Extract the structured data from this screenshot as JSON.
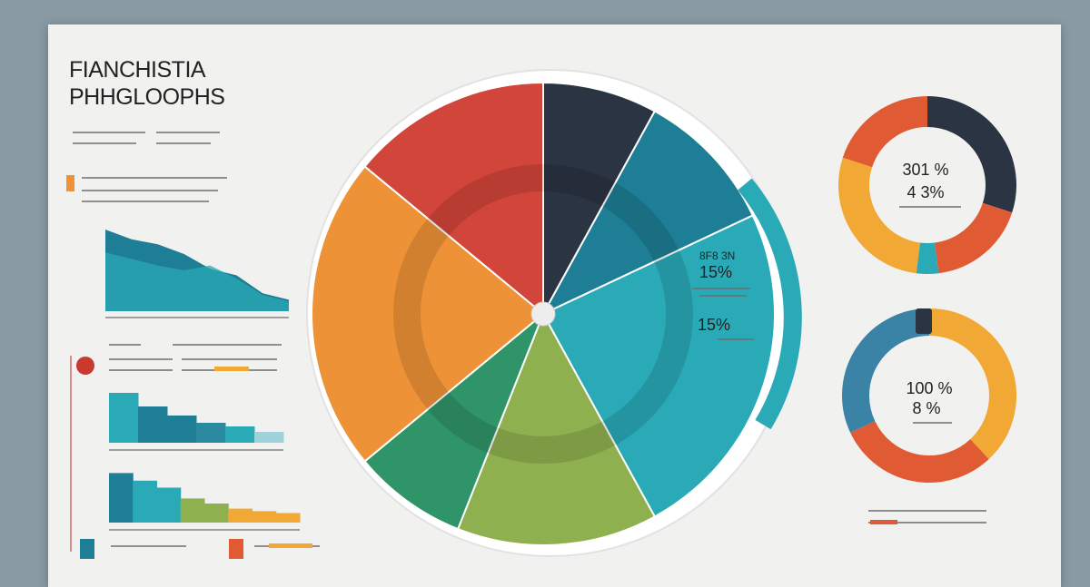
{
  "title_lines": [
    "FIANCHISTIA",
    "PHHGLOOPHS"
  ],
  "colors": {
    "red": "#d2453a",
    "orange": "#ee9237",
    "navy": "#2b3442",
    "green": "#2f9467",
    "lime": "#8fb04e",
    "teal": "#2aaab7",
    "blue": "#1e7e95",
    "yellow": "#f2a835",
    "donut_red": "#e05a34",
    "donut_blue": "#3a82a6"
  },
  "chart_data": [
    {
      "type": "area",
      "description_free": true,
      "series": [
        {
          "values": [
            100,
            88,
            82,
            70,
            52,
            44,
            22,
            14
          ]
        },
        {
          "values": [
            72,
            64,
            56,
            50,
            56,
            40,
            20,
            12
          ]
        }
      ]
    },
    {
      "type": "bar",
      "values": [
        55,
        40,
        30,
        22,
        18,
        12
      ]
    },
    {
      "type": "bar",
      "values": [
        78,
        66,
        55,
        38,
        30,
        22,
        18,
        15
      ]
    },
    {
      "type": "pie",
      "labels": [
        "",
        "",
        "",
        "",
        "",
        ""
      ],
      "values": [
        12,
        16,
        8,
        22,
        24,
        18
      ]
    },
    {
      "type": "pie",
      "center_lines": [
        "301 %",
        "4 3%"
      ],
      "values": [
        30,
        18,
        4,
        28,
        20
      ]
    },
    {
      "type": "pie",
      "center_lines": [
        "100 %",
        "8 %"
      ],
      "values": [
        38,
        30,
        32
      ]
    }
  ],
  "annotations": {
    "wheel_right_top": "8F8 3N",
    "wheel_right_pct": "15%",
    "wheel_right_pct2": "15%"
  }
}
